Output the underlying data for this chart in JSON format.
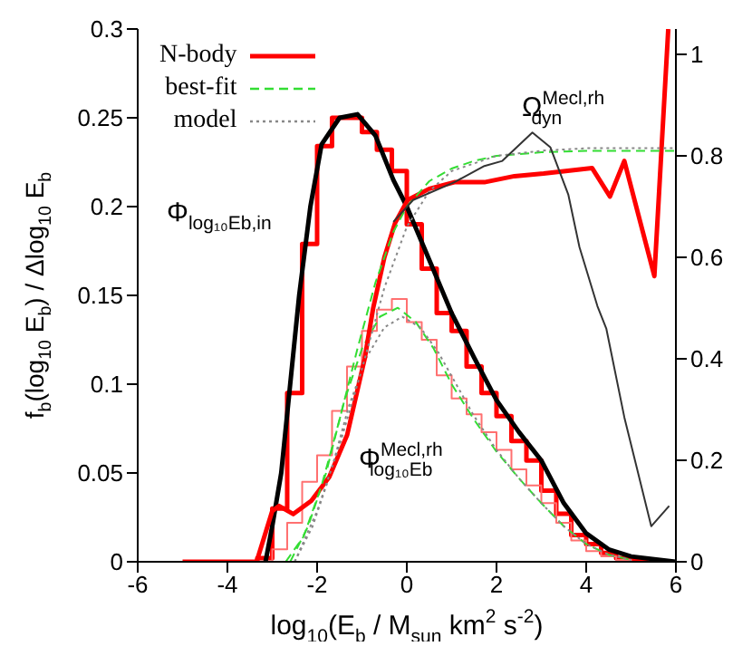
{
  "chart_data": {
    "type": "line",
    "xlabel": "log$_{10}$(E$_{b}$ / M$_{sun}$ km$^{2}$ s$^{-2}$)",
    "ylabel": "f$_{b}$(log$_{10}$ E$_{b}$) / Δlog$_{10}$ E$_{b}$",
    "xlim": [
      -6,
      6
    ],
    "xticks": [
      -6,
      -4,
      -2,
      0,
      2,
      4,
      6
    ],
    "ylim": [
      0,
      0.3
    ],
    "yticks": [
      0,
      0.05,
      0.1,
      0.15,
      0.2,
      0.25,
      0.3
    ],
    "y2lim": [
      0,
      1.05
    ],
    "y2ticks": [
      0,
      0.2,
      0.4,
      0.6,
      0.8,
      1
    ],
    "legend": "top left",
    "annotations": [
      "Φ$_{log₁₀Eb,in}$",
      "Ω$^{Mecl,rh}$$_{dyn}$",
      "Φ$^{Mecl,rh}$$_{log₁₀Eb}$"
    ],
    "series": [
      {
        "name": "N-body",
        "type": "histogram",
        "color": "#ff0000",
        "bins": [
          -3.333,
          -3,
          -2.667,
          -2.333,
          -2,
          -1.667,
          -1.333,
          -1,
          -0.667,
          -0.333,
          0,
          0.333,
          0.667,
          1,
          1.333,
          1.667,
          2,
          2.333,
          2.667,
          3,
          3.333,
          3.667,
          4,
          4.333,
          4.667,
          5,
          5.333
        ],
        "values": [
          0.002,
          0.03,
          0.095,
          0.179,
          0.234,
          0.25,
          0.25,
          0.242,
          0.232,
          0.22,
          0.19,
          0.165,
          0.14,
          0.13,
          0.11,
          0.095,
          0.082,
          0.068,
          0.057,
          0.04,
          0.027,
          0.015,
          0.01,
          0.005,
          0.002,
          0.001
        ]
      },
      {
        "color": "#000000",
        "x": [
          -3.15,
          -3,
          -2.8,
          -2.6,
          -2.4,
          -2.15,
          -1.9,
          -1.5,
          -1.1,
          -0.7,
          -0.3,
          0,
          0.5,
          1,
          1.5,
          2,
          2.5,
          3,
          3.5,
          4,
          4.5,
          5,
          6
        ],
        "values": [
          0,
          0.02,
          0.05,
          0.1,
          0.15,
          0.2,
          0.235,
          0.25,
          0.252,
          0.24,
          0.215,
          0.2,
          0.17,
          0.14,
          0.115,
          0.091,
          0.073,
          0.057,
          0.033,
          0.016,
          0.007,
          0.003,
          0
        ]
      },
      {
        "type": "histogram",
        "color": "#ff7070",
        "bins": [
          -3.333,
          -3,
          -2.667,
          -2.333,
          -2,
          -1.667,
          -1.333,
          -1,
          -0.667,
          -0.333,
          0,
          0.333,
          0.667,
          1,
          1.333,
          1.667,
          2,
          2.333,
          2.667,
          3,
          3.333,
          3.667,
          4,
          4.333,
          4.667,
          5,
          5.333
        ],
        "values": [
          0,
          0.007,
          0.022,
          0.045,
          0.06,
          0.085,
          0.11,
          0.13,
          0.142,
          0.148,
          0.135,
          0.125,
          0.105,
          0.092,
          0.083,
          0.073,
          0.063,
          0.052,
          0.043,
          0.033,
          0.022,
          0.012,
          0.006,
          0.003,
          0.001,
          0
        ]
      },
      {
        "name": "best-fit",
        "type": "line",
        "line_style": "dashed",
        "color": "#33dd33",
        "x": [
          -2.6,
          -2.2,
          -1.8,
          -1.4,
          -1,
          -0.6,
          -0.2,
          0.2,
          0.6,
          1,
          1.5,
          2,
          2.5,
          3,
          3.5,
          4,
          4.5,
          5
        ],
        "values": [
          0,
          0.02,
          0.05,
          0.09,
          0.12,
          0.138,
          0.143,
          0.135,
          0.12,
          0.1,
          0.08,
          0.062,
          0.047,
          0.033,
          0.02,
          0.01,
          0.004,
          0.001
        ]
      },
      {
        "name": "model",
        "type": "line",
        "line_style": "dotted",
        "color": "#888888",
        "x": [
          -2.5,
          -2.1,
          -1.7,
          -1.3,
          -0.9,
          -0.5,
          -0.1,
          0.3,
          0.7,
          1.1,
          1.5,
          2,
          2.5,
          3,
          3.5,
          4,
          4.5,
          5
        ],
        "values": [
          0,
          0.02,
          0.05,
          0.087,
          0.115,
          0.132,
          0.138,
          0.132,
          0.118,
          0.1,
          0.082,
          0.063,
          0.047,
          0.033,
          0.02,
          0.01,
          0.004,
          0.001
        ]
      },
      {
        "type": "line",
        "axis": "y2",
        "color": "#ff0000",
        "x": [
          -5,
          -3.35,
          -3,
          -2.85,
          -2.53,
          -2.13,
          -1.73,
          -1.33,
          -0.94,
          -0.75,
          -0.5,
          -0.26,
          0.02,
          0.5,
          1.06,
          1.73,
          2.4,
          3.05,
          4.13,
          4.53,
          4.85,
          5.52,
          5.83
        ],
        "values": [
          0,
          0,
          0.1,
          0.11,
          0.094,
          0.12,
          0.167,
          0.25,
          0.4,
          0.5,
          0.6,
          0.668,
          0.713,
          0.735,
          0.748,
          0.748,
          0.76,
          0.765,
          0.776,
          0.72,
          0.79,
          0.563,
          1.05
        ]
      },
      {
        "type": "line",
        "axis": "y2",
        "line_style": "dashed",
        "color": "#33dd33",
        "x": [
          -2.7,
          -2.3,
          -1.9,
          -1.5,
          -1.1,
          -0.7,
          -0.3,
          0,
          0.5,
          1,
          1.5,
          2,
          3,
          4,
          6
        ],
        "values": [
          0,
          0.05,
          0.15,
          0.28,
          0.42,
          0.55,
          0.65,
          0.7,
          0.75,
          0.775,
          0.79,
          0.8,
          0.807,
          0.81,
          0.81
        ]
      },
      {
        "type": "line",
        "axis": "y2",
        "line_style": "dotted",
        "color": "#888888",
        "x": [
          -2.5,
          -2,
          -1.5,
          -1,
          -0.5,
          0,
          0.5,
          1,
          2,
          3,
          4,
          6
        ],
        "values": [
          0,
          0.1,
          0.23,
          0.38,
          0.54,
          0.66,
          0.73,
          0.77,
          0.8,
          0.81,
          0.815,
          0.815
        ]
      },
      {
        "type": "line",
        "axis": "y2",
        "color": "#333333",
        "x": [
          -0.3,
          0.14,
          1.06,
          1.73,
          2.13,
          2.8,
          3.2,
          3.6,
          3.85,
          4.25,
          4.45,
          4.85,
          5.45,
          5.85
        ],
        "values": [
          0.67,
          0.713,
          0.748,
          0.78,
          0.79,
          0.846,
          0.817,
          0.724,
          0.62,
          0.504,
          0.459,
          0.285,
          0.07,
          0.11
        ]
      }
    ]
  }
}
